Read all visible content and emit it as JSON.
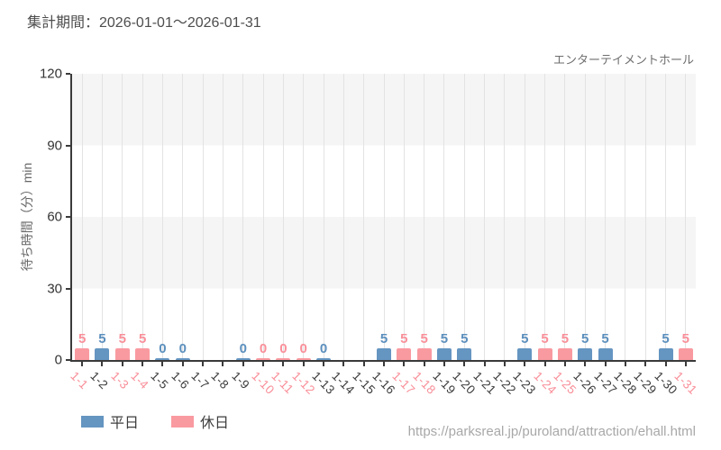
{
  "header": {
    "title": "集計期間：2026-01-01〜2026-01-31"
  },
  "footer": {
    "url": "https://parksreal.jp/puroland/attraction/ehall.html"
  },
  "colors": {
    "weekday_bar": "#6595c1",
    "holiday_bar": "#f99aa0",
    "weekday_value_label": "#5b8fbd",
    "holiday_value_label": "#f98f99",
    "weekday_tick_label": "#3d3d3d",
    "holiday_tick_label": "#f98f99",
    "axis": "#3a3a3a",
    "band_gray": "#f5f5f5",
    "gridline": "#e3e3e3"
  },
  "chart_data": {
    "type": "bar",
    "title": "集計期間：2026-01-01〜2026-01-31",
    "subtitle": "エンターテイメントホール",
    "xlabel": "",
    "ylabel": "待ち時間（分）min",
    "ylim": [
      0,
      120
    ],
    "yticks": [
      0,
      30,
      60,
      90,
      120
    ],
    "grid": "vertical gridlines at each date; alternating horizontal gray/white bands every 30 units",
    "legend_position": "bottom-left",
    "legend": [
      {
        "label": "平日",
        "type": "weekday",
        "color": "#6595c1"
      },
      {
        "label": "休日",
        "type": "holiday",
        "color": "#f99aa0"
      }
    ],
    "categories": [
      "1-1",
      "1-2",
      "1-3",
      "1-4",
      "1-5",
      "1-6",
      "1-7",
      "1-8",
      "1-9",
      "1-10",
      "1-11",
      "1-12",
      "1-13",
      "1-14",
      "1-15",
      "1-16",
      "1-17",
      "1-18",
      "1-19",
      "1-20",
      "1-21",
      "1-22",
      "1-23",
      "1-24",
      "1-25",
      "1-26",
      "1-27",
      "1-28",
      "1-29",
      "1-30",
      "1-31"
    ],
    "days": [
      {
        "date": "1-1",
        "value": 5,
        "type": "holiday"
      },
      {
        "date": "1-2",
        "value": 5,
        "type": "weekday"
      },
      {
        "date": "1-3",
        "value": 5,
        "type": "holiday"
      },
      {
        "date": "1-4",
        "value": 5,
        "type": "holiday"
      },
      {
        "date": "1-5",
        "value": 0,
        "type": "weekday"
      },
      {
        "date": "1-6",
        "value": 0,
        "type": "weekday"
      },
      {
        "date": "1-7",
        "value": null,
        "type": "weekday"
      },
      {
        "date": "1-8",
        "value": null,
        "type": "weekday"
      },
      {
        "date": "1-9",
        "value": 0,
        "type": "weekday"
      },
      {
        "date": "1-10",
        "value": 0,
        "type": "holiday"
      },
      {
        "date": "1-11",
        "value": 0,
        "type": "holiday"
      },
      {
        "date": "1-12",
        "value": 0,
        "type": "holiday"
      },
      {
        "date": "1-13",
        "value": 0,
        "type": "weekday"
      },
      {
        "date": "1-14",
        "value": null,
        "type": "weekday"
      },
      {
        "date": "1-15",
        "value": null,
        "type": "weekday"
      },
      {
        "date": "1-16",
        "value": 5,
        "type": "weekday"
      },
      {
        "date": "1-17",
        "value": 5,
        "type": "holiday"
      },
      {
        "date": "1-18",
        "value": 5,
        "type": "holiday"
      },
      {
        "date": "1-19",
        "value": 5,
        "type": "weekday"
      },
      {
        "date": "1-20",
        "value": 5,
        "type": "weekday"
      },
      {
        "date": "1-21",
        "value": null,
        "type": "weekday"
      },
      {
        "date": "1-22",
        "value": null,
        "type": "weekday"
      },
      {
        "date": "1-23",
        "value": 5,
        "type": "weekday"
      },
      {
        "date": "1-24",
        "value": 5,
        "type": "holiday"
      },
      {
        "date": "1-25",
        "value": 5,
        "type": "holiday"
      },
      {
        "date": "1-26",
        "value": 5,
        "type": "weekday"
      },
      {
        "date": "1-27",
        "value": 5,
        "type": "weekday"
      },
      {
        "date": "1-28",
        "value": null,
        "type": "weekday"
      },
      {
        "date": "1-29",
        "value": null,
        "type": "weekday"
      },
      {
        "date": "1-30",
        "value": 5,
        "type": "weekday"
      },
      {
        "date": "1-31",
        "value": 5,
        "type": "holiday"
      }
    ]
  }
}
